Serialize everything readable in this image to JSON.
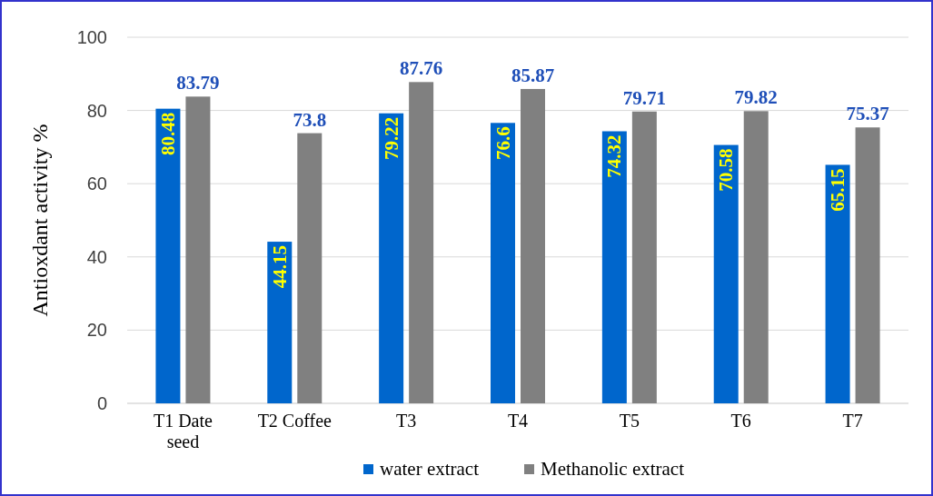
{
  "chart_data": {
    "type": "bar",
    "ylabel": "Antioxdant activity %",
    "categories": [
      "T1 Date seed",
      "T2 Coffee",
      "T3",
      "T4",
      "T5",
      "T6",
      "T7"
    ],
    "series": [
      {
        "name": "water extract",
        "color": "#0066cc",
        "values": [
          80.48,
          44.15,
          79.22,
          76.6,
          74.32,
          70.58,
          65.15
        ]
      },
      {
        "name": "Methanolic extract",
        "color": "#808080",
        "values": [
          83.79,
          73.8,
          87.76,
          85.87,
          79.71,
          79.82,
          75.37
        ]
      }
    ],
    "ylim": [
      0,
      100
    ],
    "yticks": [
      0,
      20,
      40,
      60,
      80,
      100
    ],
    "grid": "y",
    "legend": "bottom",
    "data_labels": true
  }
}
